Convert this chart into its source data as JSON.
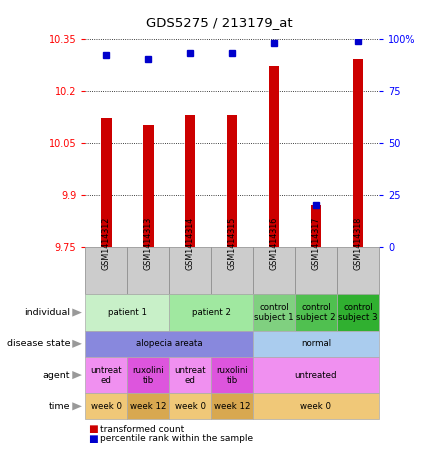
{
  "title": "GDS5275 / 213179_at",
  "samples": [
    "GSM1414312",
    "GSM1414313",
    "GSM1414314",
    "GSM1414315",
    "GSM1414316",
    "GSM1414317",
    "GSM1414318"
  ],
  "transformed_count": [
    10.12,
    10.1,
    10.13,
    10.13,
    10.27,
    9.87,
    10.29
  ],
  "percentile_rank": [
    92,
    90,
    93,
    93,
    98,
    20,
    99
  ],
  "ylim_left": [
    9.75,
    10.35
  ],
  "ylim_right": [
    0,
    100
  ],
  "yticks_left": [
    9.75,
    9.9,
    10.05,
    10.2,
    10.35
  ],
  "yticks_right": [
    0,
    25,
    50,
    75,
    100
  ],
  "ytick_labels_left": [
    "9.75",
    "9.9",
    "10.05",
    "10.2",
    "10.35"
  ],
  "ytick_labels_right": [
    "0",
    "25",
    "50",
    "75",
    "100%"
  ],
  "bar_color": "#cc0000",
  "dot_color": "#0000cc",
  "individual_cells": [
    {
      "span": [
        0,
        1
      ],
      "text": "patient 1",
      "color": "#c8f0c8"
    },
    {
      "span": [
        2,
        3
      ],
      "text": "patient 2",
      "color": "#a0e8a0"
    },
    {
      "span": [
        4,
        4
      ],
      "text": "control\nsubject 1",
      "color": "#80d080"
    },
    {
      "span": [
        5,
        5
      ],
      "text": "control\nsubject 2",
      "color": "#50c050"
    },
    {
      "span": [
        6,
        6
      ],
      "text": "control\nsubject 3",
      "color": "#30b030"
    }
  ],
  "disease_cells": [
    {
      "span": [
        0,
        3
      ],
      "text": "alopecia areata",
      "color": "#8888dd"
    },
    {
      "span": [
        4,
        6
      ],
      "text": "normal",
      "color": "#aaccee"
    }
  ],
  "agent_cells": [
    {
      "span": [
        0,
        0
      ],
      "text": "untreat\ned",
      "color": "#f090f0"
    },
    {
      "span": [
        1,
        1
      ],
      "text": "ruxolini\ntib",
      "color": "#dd55dd"
    },
    {
      "span": [
        2,
        2
      ],
      "text": "untreat\ned",
      "color": "#f090f0"
    },
    {
      "span": [
        3,
        3
      ],
      "text": "ruxolini\ntib",
      "color": "#dd55dd"
    },
    {
      "span": [
        4,
        6
      ],
      "text": "untreated",
      "color": "#f090f0"
    }
  ],
  "time_cells": [
    {
      "span": [
        0,
        0
      ],
      "text": "week 0",
      "color": "#f0c878"
    },
    {
      "span": [
        1,
        1
      ],
      "text": "week 12",
      "color": "#d8a850"
    },
    {
      "span": [
        2,
        2
      ],
      "text": "week 0",
      "color": "#f0c878"
    },
    {
      "span": [
        3,
        3
      ],
      "text": "week 12",
      "color": "#d8a850"
    },
    {
      "span": [
        4,
        6
      ],
      "text": "week 0",
      "color": "#f0c878"
    }
  ],
  "row_labels": [
    "individual",
    "disease state",
    "agent",
    "time"
  ],
  "sample_bg_color": "#cccccc",
  "border_color": "#888888"
}
